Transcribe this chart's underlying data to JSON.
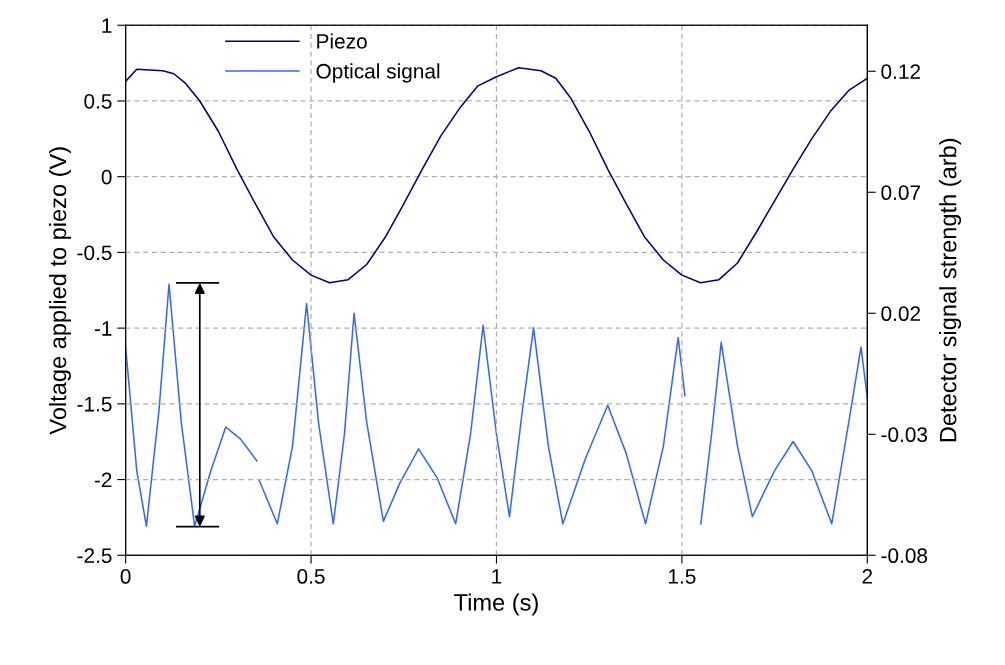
{
  "chart_data": {
    "type": "line",
    "xlabel": "Time (s)",
    "ylabel": "Voltage applied to piezo (V)",
    "y2label": "Detector signal strength (arb)",
    "xlim": [
      0,
      2
    ],
    "xticks": [
      0,
      0.5,
      1,
      1.5,
      2
    ],
    "ylim": [
      -2.5,
      1
    ],
    "yticks": [
      -2.5,
      -2,
      -1.5,
      -1,
      -0.5,
      0,
      0.5,
      1
    ],
    "y2lim": [
      -0.08,
      0.139
    ],
    "y2ticks": [
      -0.08,
      -0.03,
      0.02,
      0.07,
      0.12
    ],
    "grid": true,
    "legend": "top left",
    "line_style": "solid",
    "marker": "none",
    "series": [
      {
        "name": "Piezo",
        "color": "#000080",
        "x": [
          0,
          0.03,
          0.1,
          0.13,
          0.16,
          0.2,
          0.25,
          0.3,
          0.35,
          0.4,
          0.45,
          0.5,
          0.55,
          0.6,
          0.65,
          0.7,
          0.75,
          0.8,
          0.85,
          0.9,
          0.95,
          1.0,
          1.06,
          1.12,
          1.16,
          1.2,
          1.25,
          1.3,
          1.35,
          1.4,
          1.45,
          1.5,
          1.55,
          1.6,
          1.65,
          1.7,
          1.75,
          1.8,
          1.85,
          1.9,
          1.95,
          2.0
        ],
        "values": [
          0.63,
          0.71,
          0.7,
          0.68,
          0.62,
          0.5,
          0.3,
          0.05,
          -0.18,
          -0.4,
          -0.55,
          -0.65,
          -0.7,
          -0.68,
          -0.58,
          -0.4,
          -0.18,
          0.05,
          0.27,
          0.45,
          0.6,
          0.66,
          0.72,
          0.7,
          0.65,
          0.52,
          0.3,
          0.05,
          -0.18,
          -0.4,
          -0.55,
          -0.65,
          -0.7,
          -0.68,
          -0.57,
          -0.37,
          -0.16,
          0.05,
          0.25,
          0.43,
          0.57,
          0.65
        ]
      },
      {
        "name": "Optical signal",
        "color": "#3366ff",
        "axis": "y2",
        "x": [
          0,
          0.03,
          0.056,
          0.09,
          0.117,
          0.15,
          0.186,
          0.23,
          0.27,
          0.31,
          0.354,
          0.356,
          0.36,
          0.409,
          0.45,
          0.488,
          0.52,
          0.56,
          0.59,
          0.616,
          0.65,
          0.695,
          0.74,
          0.79,
          0.84,
          0.89,
          0.93,
          0.964,
          1.0,
          1.035,
          1.07,
          1.1,
          1.14,
          1.179,
          1.24,
          1.3,
          1.35,
          1.402,
          1.45,
          1.49,
          1.508,
          1.51,
          1.551,
          1.58,
          1.606,
          1.65,
          1.69,
          1.75,
          1.8,
          1.85,
          1.904,
          1.95,
          1.983,
          2.0
        ],
        "values": [
          0.006,
          -0.045,
          -0.068,
          -0.02,
          0.032,
          -0.025,
          -0.068,
          -0.045,
          -0.027,
          -0.032,
          -0.041,
          null,
          -0.049,
          -0.067,
          -0.035,
          0.024,
          -0.025,
          -0.067,
          -0.03,
          0.02,
          -0.025,
          -0.066,
          -0.05,
          -0.036,
          -0.048,
          -0.067,
          -0.03,
          0.015,
          -0.03,
          -0.064,
          -0.02,
          0.014,
          -0.035,
          -0.067,
          -0.04,
          -0.018,
          -0.038,
          -0.067,
          -0.035,
          0.01,
          -0.014,
          null,
          -0.067,
          -0.03,
          0.008,
          -0.035,
          -0.064,
          -0.045,
          -0.033,
          -0.045,
          -0.067,
          -0.025,
          0.006,
          -0.015
        ]
      }
    ]
  }
}
